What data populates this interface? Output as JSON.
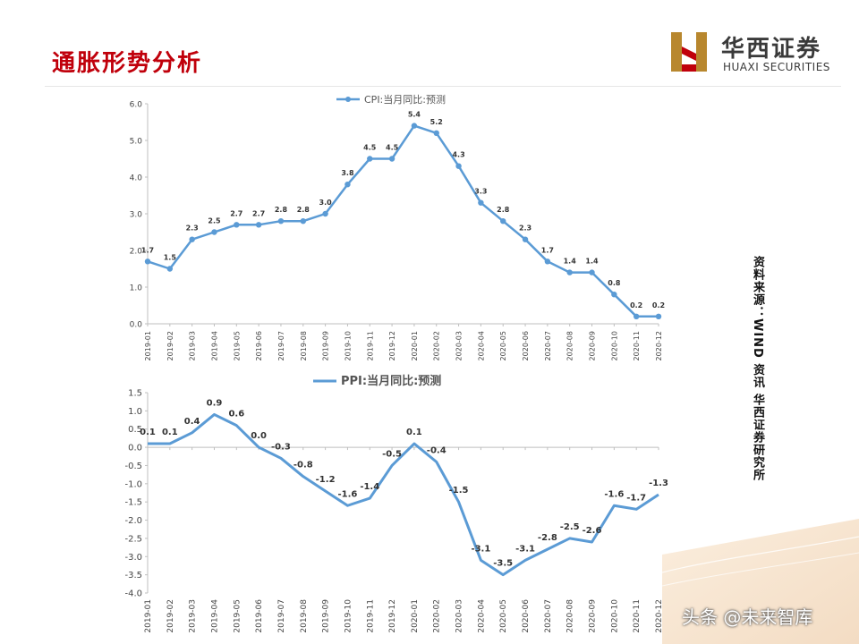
{
  "page": {
    "title": "通胀形势分析",
    "logo_cn": "华西证券",
    "logo_en": "HUAXI SECURITIES",
    "source_note": "资料来源：WIND 资讯 华西证券研究所",
    "watermark": "头条 @未来智库",
    "brand_color": "#c0000b",
    "line_color": "#5b9bd5"
  },
  "chart_data": [
    {
      "type": "line",
      "title": "",
      "legend": "top",
      "categories": [
        "2019-01",
        "2019-02",
        "2019-03",
        "2019-04",
        "2019-05",
        "2019-06",
        "2019-07",
        "2019-08",
        "2019-09",
        "2019-10",
        "2019-11",
        "2019-12",
        "2020-01",
        "2020-02",
        "2020-03",
        "2020-04",
        "2020-05",
        "2020-06",
        "2020-07",
        "2020-08",
        "2020-09",
        "2020-10",
        "2020-11",
        "2020-12"
      ],
      "series": [
        {
          "name": "CPI:当月同比:预测",
          "values": [
            1.7,
            1.5,
            2.3,
            2.5,
            2.7,
            2.7,
            2.8,
            2.8,
            3.0,
            3.8,
            4.5,
            4.5,
            5.4,
            5.2,
            4.3,
            3.3,
            2.8,
            2.3,
            1.7,
            1.4,
            1.4,
            0.8,
            0.2,
            0.2
          ]
        }
      ],
      "ylim": [
        0,
        6
      ],
      "yticks": [
        "0.0",
        "1.0",
        "2.0",
        "3.0",
        "4.0",
        "5.0",
        "6.0"
      ],
      "grid": false
    },
    {
      "type": "line",
      "title": "",
      "legend": "top",
      "categories": [
        "2019-01",
        "2019-02",
        "2019-03",
        "2019-04",
        "2019-05",
        "2019-06",
        "2019-07",
        "2019-08",
        "2019-09",
        "2019-10",
        "2019-11",
        "2019-12",
        "2020-01",
        "2020-02",
        "2020-03",
        "2020-04",
        "2020-05",
        "2020-06",
        "2020-07",
        "2020-08",
        "2020-09",
        "2020-10",
        "2020-11",
        "2020-12"
      ],
      "series": [
        {
          "name": "PPI:当月同比:预测",
          "values": [
            0.1,
            0.1,
            0.4,
            0.9,
            0.6,
            0.0,
            -0.3,
            -0.8,
            -1.2,
            -1.6,
            -1.4,
            -0.5,
            0.1,
            -0.4,
            -1.5,
            -3.1,
            -3.5,
            -3.1,
            -2.8,
            -2.5,
            -2.6,
            -1.6,
            -1.7,
            -1.3
          ]
        }
      ],
      "ylim": [
        -4,
        1.5
      ],
      "yticks": [
        "1.5",
        "1.0",
        "0.5",
        "0.0",
        "-0.5",
        "-1.0",
        "-1.5",
        "-2.0",
        "-2.5",
        "-3.0",
        "-3.5",
        "-4.0"
      ],
      "grid": false
    }
  ]
}
